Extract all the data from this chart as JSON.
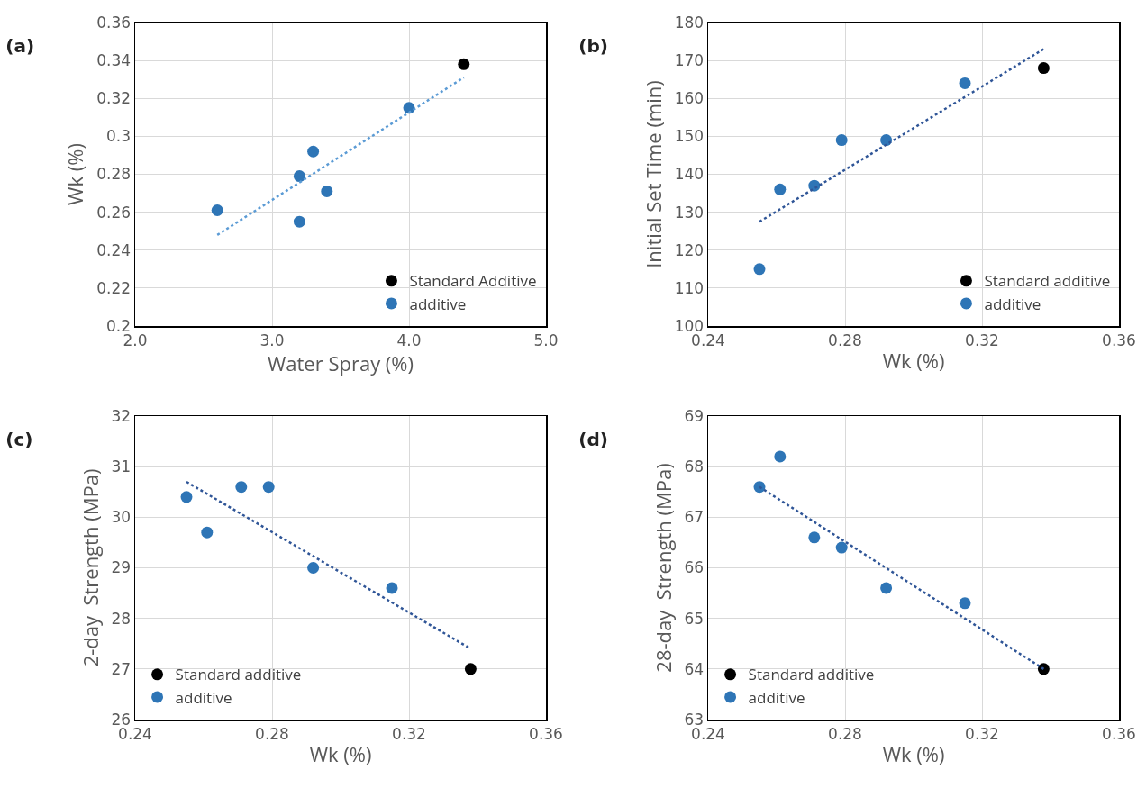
{
  "chart_data": [
    {
      "type": "scatter",
      "title": "(a)",
      "xlabel": "Water Spray (%)",
      "ylabel": "Wk (%)",
      "xlim": [
        2,
        5
      ],
      "xticks": [
        {
          "value": 2,
          "label": "2.0"
        },
        {
          "value": 3,
          "label": "3.0"
        },
        {
          "value": 4,
          "label": "4.0"
        },
        {
          "value": 5,
          "label": "5.0"
        }
      ],
      "ylim": [
        0.2,
        0.36
      ],
      "yticks": [
        0.2,
        0.22,
        0.24,
        0.26,
        0.28,
        0.3,
        0.32,
        0.34,
        0.36
      ],
      "grid": true,
      "legend": "bottom right",
      "marker": "circle",
      "series": [
        {
          "name": "Standard Additive",
          "color": "#000000",
          "x": [
            4.4
          ],
          "values": [
            0.338
          ]
        },
        {
          "name": "additive",
          "color": "#2e75b6",
          "x": [
            2.6,
            3.2,
            3.2,
            3.3,
            3.4,
            4.0
          ],
          "values": [
            0.261,
            0.279,
            0.255,
            0.292,
            0.271,
            0.315
          ]
        },
        {
          "type": "line",
          "color": "#5b9bd5",
          "line_style": "dotted",
          "marker": "none",
          "x": [
            2.6,
            4.4
          ],
          "values": [
            0.248,
            0.331
          ]
        }
      ]
    },
    {
      "type": "scatter",
      "title": "(b)",
      "xlabel": "Wk (%)",
      "ylabel": "Initial Set Time (min)",
      "xlim": [
        0.24,
        0.36
      ],
      "xticks": [
        0.24,
        0.28,
        0.32,
        0.36
      ],
      "ylim": [
        100,
        180
      ],
      "yticks": [
        100,
        110,
        120,
        130,
        140,
        150,
        160,
        170,
        180
      ],
      "grid": true,
      "legend": "bottom right",
      "marker": "circle",
      "series": [
        {
          "name": "Standard additive",
          "color": "#000000",
          "x": [
            0.338
          ],
          "values": [
            168
          ]
        },
        {
          "name": "additive",
          "color": "#2e75b6",
          "x": [
            0.255,
            0.261,
            0.271,
            0.279,
            0.292,
            0.315
          ],
          "values": [
            115,
            136,
            137,
            149,
            149,
            164
          ]
        },
        {
          "type": "line",
          "color": "#2f5597",
          "line_style": "dotted",
          "marker": "none",
          "x": [
            0.255,
            0.338
          ],
          "values": [
            127.5,
            173
          ]
        }
      ]
    },
    {
      "type": "scatter",
      "title": "(c)",
      "xlabel": "Wk (%)",
      "ylabel": "2-day  Strength (MPa)",
      "xlim": [
        0.24,
        0.36
      ],
      "xticks": [
        0.24,
        0.28,
        0.32,
        0.36
      ],
      "ylim": [
        26,
        32
      ],
      "yticks": [
        26,
        27,
        28,
        29,
        30,
        31,
        32
      ],
      "grid": true,
      "legend": "bottom left",
      "marker": "circle",
      "series": [
        {
          "name": "Standard additive",
          "color": "#000000",
          "x": [
            0.338
          ],
          "values": [
            27.0
          ]
        },
        {
          "name": "additive",
          "color": "#2e75b6",
          "x": [
            0.255,
            0.261,
            0.271,
            0.279,
            0.292,
            0.315
          ],
          "values": [
            30.4,
            29.7,
            30.6,
            30.6,
            29.0,
            28.6
          ]
        },
        {
          "type": "line",
          "color": "#2f5597",
          "line_style": "dotted",
          "marker": "none",
          "x": [
            0.255,
            0.338
          ],
          "values": [
            30.7,
            27.4
          ]
        }
      ]
    },
    {
      "type": "scatter",
      "title": "(d)",
      "xlabel": "Wk (%)",
      "ylabel": "28-day  Strength (MPa)",
      "xlim": [
        0.24,
        0.36
      ],
      "xticks": [
        0.24,
        0.28,
        0.32,
        0.36
      ],
      "ylim": [
        63,
        69
      ],
      "yticks": [
        63,
        64,
        65,
        66,
        67,
        68,
        69
      ],
      "grid": true,
      "legend": "bottom left",
      "marker": "circle",
      "series": [
        {
          "name": "Standard additive",
          "color": "#000000",
          "x": [
            0.338
          ],
          "values": [
            64.0
          ]
        },
        {
          "name": "additive",
          "color": "#2e75b6",
          "x": [
            0.255,
            0.261,
            0.271,
            0.279,
            0.292,
            0.315
          ],
          "values": [
            67.6,
            68.2,
            66.6,
            66.4,
            65.6,
            65.3
          ]
        },
        {
          "type": "line",
          "color": "#2f5597",
          "line_style": "dotted",
          "marker": "none",
          "x": [
            0.255,
            0.338
          ],
          "values": [
            67.6,
            64.0
          ]
        }
      ]
    }
  ]
}
